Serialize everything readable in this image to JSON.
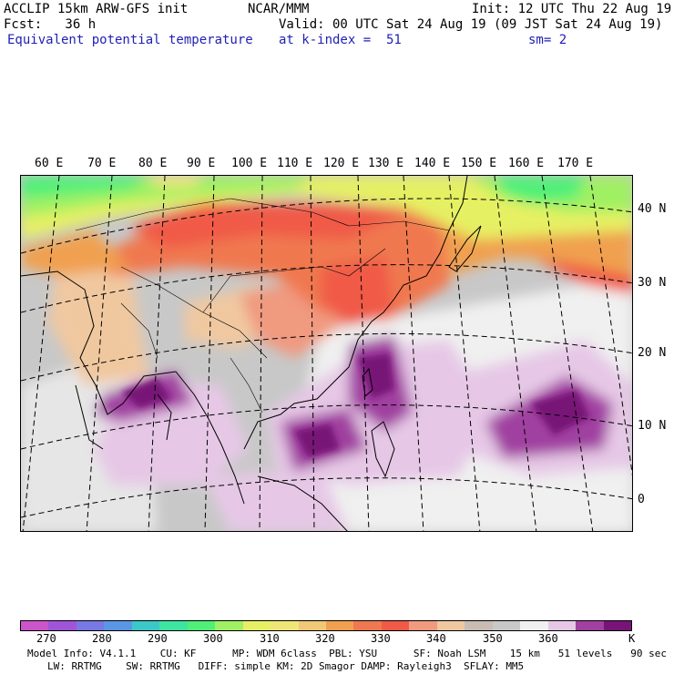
{
  "header": {
    "model": "ACCLIP 15km ARW-GFS init",
    "center": "NCAR/MMM",
    "init": "Init: 12 UTC Thu 22 Aug 19",
    "fcst": "Fcst:   36 h",
    "valid": "Valid: 00 UTC Sat 24 Aug 19 (09 JST Sat 24 Aug 19)",
    "field": "Equivalent potential temperature",
    "level": "at k-index =  51",
    "smooth": "sm= 2"
  },
  "map": {
    "lon_labels": [
      "60 E",
      "70 E",
      "80 E",
      "90 E",
      "100 E",
      "110 E",
      "120 E",
      "130 E",
      "140 E",
      "150 E",
      "160 E",
      "170 E"
    ],
    "lat_labels": [
      "40 N",
      "30 N",
      "20 N",
      "10 N",
      "0"
    ]
  },
  "colorbar": {
    "colors": [
      "#cc55cc",
      "#a055d8",
      "#7878e6",
      "#5a96e6",
      "#3cc8c8",
      "#3ce6a0",
      "#50f078",
      "#a0f064",
      "#e6f064",
      "#f0e678",
      "#f0c878",
      "#f0a050",
      "#f07850",
      "#f05a46",
      "#f09a80",
      "#f0c8a0",
      "#c8bcb4",
      "#c8c8c8",
      "#f0f0f0",
      "#e6c8e6",
      "#a040a0",
      "#781478"
    ],
    "ticks": [
      "270",
      "280",
      "290",
      "300",
      "310",
      "320",
      "330",
      "340",
      "350",
      "360",
      "K"
    ]
  },
  "footer": {
    "line1": "Model Info: V4.1.1    CU: KF      MP: WDM 6class  PBL: YSU      SF: Noah LSM    15 km   51 levels   90 sec",
    "line2": "LW: RRTMG    SW: RRTMG   DIFF: simple KM: 2D Smagor DAMP: Rayleigh3  SFLAY: MM5"
  }
}
